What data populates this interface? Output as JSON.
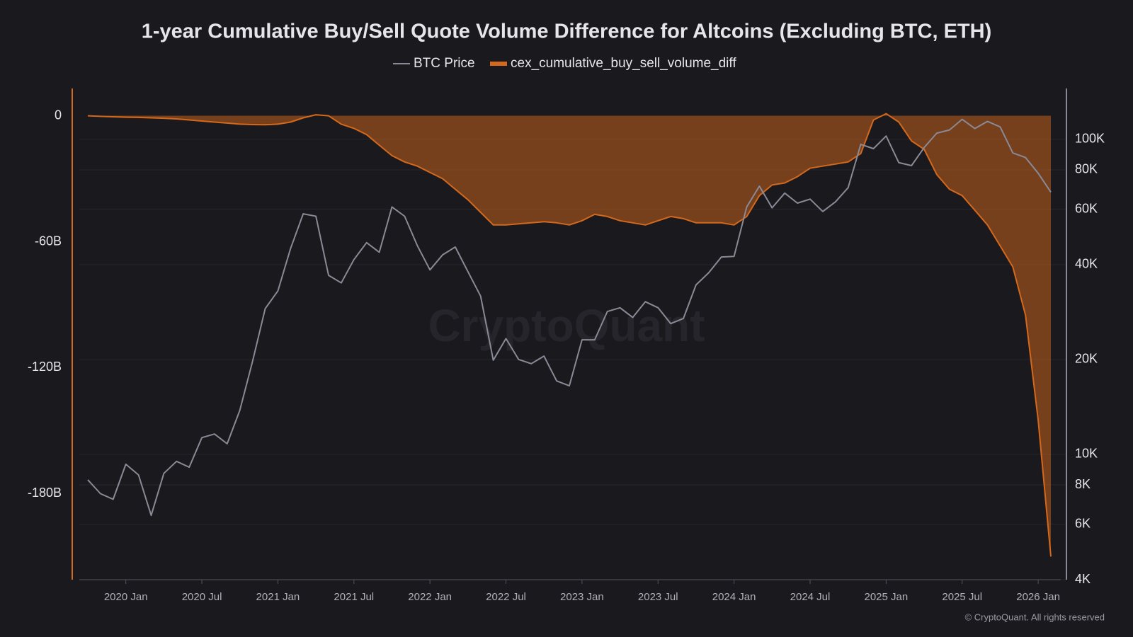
{
  "chart_data": {
    "type": "line",
    "title": "1-year Cumulative Buy/Sell Quote Volume Difference for Altcoins (Excluding BTC, ETH)",
    "watermark": "CryptoQuant",
    "credit": "© CryptoQuant. All rights reserved",
    "x": [
      null,
      null,
      null,
      "2020 Jan",
      null,
      null,
      null,
      null,
      null,
      "2020 Jul",
      null,
      null,
      null,
      null,
      null,
      "2021 Jan",
      null,
      null,
      null,
      null,
      null,
      "2021 Jul",
      null,
      null,
      null,
      null,
      null,
      "2022 Jan",
      null,
      null,
      null,
      null,
      null,
      "2022 Jul",
      null,
      null,
      null,
      null,
      null,
      "2023 Jan",
      null,
      null,
      null,
      null,
      null,
      "2023 Jul",
      null,
      null,
      null,
      null,
      null,
      "2024 Jan",
      null,
      null,
      null,
      null,
      null,
      "2024 Jul",
      null,
      null,
      null,
      null,
      null,
      "2025 Jan",
      null,
      null,
      null,
      null,
      null,
      "2025 Jul",
      null,
      null,
      null,
      null,
      null,
      "2026 Jan",
      null
    ],
    "series": [
      {
        "name": "BTC Price",
        "color": "#8a8a96",
        "axis": "y2",
        "values": [
          8300,
          7500,
          7200,
          9300,
          8600,
          6400,
          8700,
          9500,
          9100,
          11300,
          11600,
          10800,
          13800,
          19700,
          29000,
          33000,
          45000,
          58000,
          57000,
          37000,
          35000,
          41500,
          47000,
          43800,
          61000,
          57000,
          46000,
          38500,
          43000,
          45500,
          38000,
          31800,
          19900,
          23300,
          20000,
          19400,
          20500,
          17100,
          16500,
          23100,
          23100,
          28400,
          29200,
          27200,
          30500,
          29200,
          26000,
          27000,
          34500,
          37700,
          42300,
          42500,
          61000,
          71000,
          60600,
          67500,
          62700,
          64600,
          59000,
          63300,
          70200,
          96400,
          93400,
          102400,
          84300,
          82500,
          94200,
          104600,
          107100,
          115700,
          108200,
          114000,
          109500,
          90500,
          87500,
          78000,
          68000
        ]
      },
      {
        "name": "cex_cumulative_buy_sell_volume_diff",
        "color": "#d4681c",
        "values": [
          0,
          -0.3,
          -0.5,
          -0.7,
          -0.8,
          -1,
          -1.2,
          -1.5,
          -2,
          -2.5,
          -3,
          -3.5,
          -4,
          -4.2,
          -4.3,
          -4,
          -3,
          -1,
          0.5,
          0,
          -4,
          -6,
          -9,
          -14,
          -19,
          -22,
          -24,
          -27,
          -30,
          -35,
          -40,
          -46,
          -52,
          -52,
          -51.5,
          -51,
          -50.5,
          -51,
          -52,
          -50,
          -47,
          -48,
          -50,
          -51,
          -52,
          -50,
          -48,
          -49,
          -51,
          -51,
          -51,
          -52,
          -48,
          -38,
          -33,
          -32,
          -29,
          -25,
          -24,
          -23,
          -22,
          -18,
          -2,
          1,
          -3,
          -12,
          -16,
          -28,
          -35,
          -38,
          -45,
          -52,
          -62,
          -72,
          -95,
          -145,
          -210
        ]
      }
    ],
    "ylim": [
      -221,
      13
    ],
    "yticks": [
      0,
      {
        "value": -60,
        "label": "-60B"
      },
      {
        "value": -120,
        "label": "-120B"
      },
      {
        "value": -180,
        "label": "-180B"
      }
    ],
    "y2lim": [
      4000,
      145000
    ],
    "y2ticks": [
      {
        "value": 4000,
        "label": "4K"
      },
      {
        "value": 6000,
        "label": "6K"
      },
      {
        "value": 8000,
        "label": "8K"
      },
      {
        "value": 10000,
        "label": "10K"
      },
      {
        "value": 20000,
        "label": "20K"
      },
      {
        "value": 40000,
        "label": "40K"
      },
      {
        "value": 60000,
        "label": "60K"
      },
      {
        "value": 80000,
        "label": "80K"
      },
      {
        "value": 100000,
        "label": "100K"
      }
    ],
    "y2log": true,
    "grid": true
  }
}
